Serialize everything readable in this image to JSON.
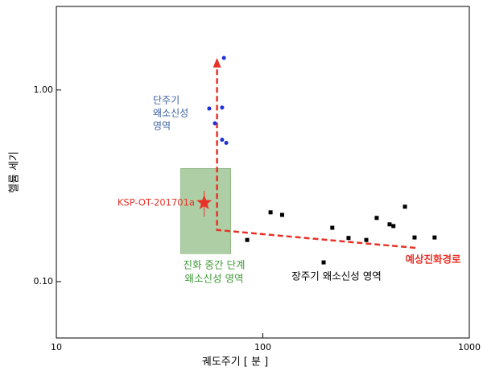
{
  "chart_data": {
    "type": "scatter",
    "xlabel": "궤도주기 [ 분 ]",
    "ylabel": "헬륨 세기",
    "log_x": true,
    "log_y": true,
    "xlim": [
      10,
      1000
    ],
    "ylim": [
      0.0508,
      2.73
    ],
    "xticks": [
      10,
      100,
      1000
    ],
    "yticks": [
      {
        "value": 1,
        "label": "1.00"
      },
      {
        "value": 0.1,
        "label": "0.10"
      }
    ],
    "regions": [
      {
        "color": "#93bf87",
        "xlim": [
          40,
          70
        ],
        "ylim": [
          0.14,
          0.39
        ]
      }
    ],
    "arrow": {
      "color": "#e8332a",
      "x": [
        548,
        60,
        60
      ],
      "values": [
        0.15,
        0.186,
        1.43
      ]
    },
    "series": [
      {
        "marker": "circle",
        "color": "#1f2fd6",
        "x": [
          64.8,
          55,
          63.5,
          58.6,
          63.5,
          66.5
        ],
        "values": [
          1.47,
          0.8,
          0.81,
          0.67,
          0.55,
          0.53
        ]
      },
      {
        "marker": "square",
        "color": "#000000",
        "x": [
          84,
          109,
          124,
          197,
          217,
          260,
          317,
          356,
          411,
          429,
          488,
          543,
          679
        ],
        "values": [
          0.165,
          0.23,
          0.223,
          0.126,
          0.191,
          0.169,
          0.165,
          0.215,
          0.199,
          0.195,
          0.246,
          0.17,
          0.17
        ]
      },
      {
        "marker": "star",
        "color": "#e8332a",
        "x": [
          52
        ],
        "values": [
          0.258
        ],
        "yerr": [
          0.04
        ]
      }
    ],
    "annotations": [
      {
        "lines": [
          "단주기",
          "왜소신성",
          "영역"
        ],
        "color": "#3a5fa0"
      },
      {
        "lines": [
          "진화 중간 단계",
          "왜소신성 영역"
        ],
        "color": "#3f9a35"
      },
      {
        "lines": [
          "장주기 왜소신성 영역"
        ],
        "color": "#000000"
      },
      {
        "lines": [
          "KSP-OT-201701a"
        ],
        "color": "#e8332a"
      },
      {
        "lines": [
          "예상진화경로"
        ],
        "color": "#e8332a",
        "bold": true
      }
    ]
  }
}
